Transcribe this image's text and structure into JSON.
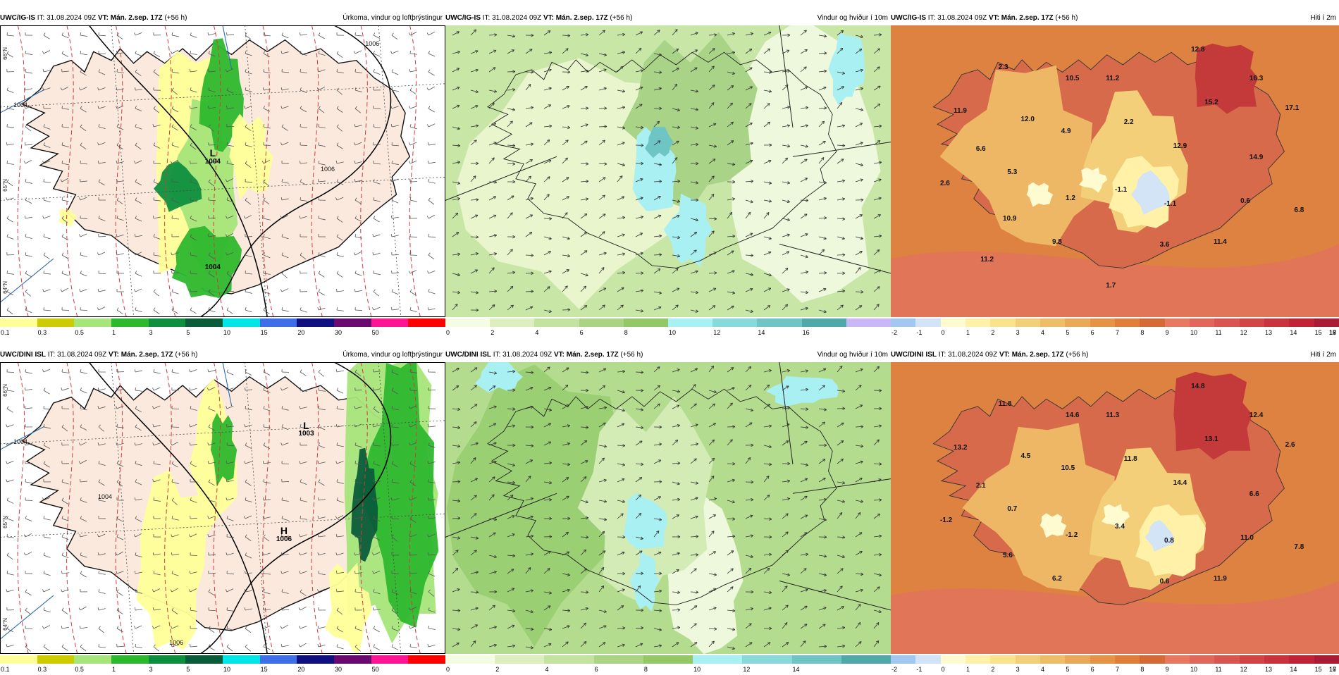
{
  "rows": [
    {
      "model": "UWC/IG-IS",
      "init_prefix": "IT:",
      "init_time": "31.08.2024 09Z",
      "valid_prefix": "VT:",
      "valid_time": "Mán. 2.sep. 17Z",
      "lead": "(+56 h)",
      "panels": [
        {
          "title": "Úrkoma, vindur og loftþrýstingur",
          "type": "precip",
          "colors": [
            "#ffff99",
            "#cccc00",
            "#a6e57a",
            "#2eb82e",
            "#0e8f3f",
            "#0a5c3a",
            "#00e6e6",
            "#3f6fe8",
            "#101080",
            "#6a0a70",
            "#ff1493",
            "#ff0000"
          ],
          "labels": [
            "0.1",
            "0.3",
            "0.5",
            "1",
            "3",
            "5",
            "10",
            "15",
            "20",
            "30",
            "50"
          ],
          "pressure_labels": [
            {
              "l": "L",
              "v": "1004"
            },
            {
              "l": "",
              "v": "1004"
            }
          ],
          "contour_labels": [
            "1006",
            "1004",
            "1006"
          ],
          "lat_labels": [
            "66°N",
            "65°N",
            "64°N"
          ]
        },
        {
          "title": "Vindur og hviður í 10m",
          "type": "wind",
          "colors": [
            "#f4fce4",
            "#ddefbf",
            "#c4e2a0",
            "#aad483",
            "#94c766",
            "#a9f0f2",
            "#88dada",
            "#6fc4c4",
            "#4fa9a9",
            "#c9b8f5"
          ],
          "labels": [
            "0",
            "2",
            "4",
            "6",
            "8",
            "10",
            "12",
            "14",
            "16"
          ]
        },
        {
          "title": "Hiti í 2m",
          "type": "temp",
          "colors": [
            "#a3c8f0",
            "#d2e4f6",
            "#fffbd0",
            "#fff2a8",
            "#f9e38c",
            "#f2d07a",
            "#eebd68",
            "#e9a957",
            "#e59446",
            "#e07f3a",
            "#d66a36",
            "#e8785f",
            "#e0675a",
            "#d95550",
            "#d24446",
            "#c9333d",
            "#bf2335",
            "#aa1b35"
          ],
          "labels": [
            "-2",
            "-1",
            "0",
            "1",
            "2",
            "3",
            "4",
            "5",
            "6",
            "7",
            "8",
            "9",
            "10",
            "11",
            "12",
            "13",
            "14",
            "15",
            "16",
            "17",
            "18"
          ],
          "temps": [
            "12.8",
            "16.3",
            "2.3",
            "10.5",
            "11.2",
            "11.9",
            "12.0",
            "15.2",
            "17.1",
            "2.2",
            "4.9",
            "12.9",
            "6.6",
            "14.9",
            "5.3",
            "2.6",
            "-1.1",
            "1.2",
            "-1.1",
            "0.6",
            "10.9",
            "6.8",
            "9.8",
            "3.6",
            "11.4",
            "11.2",
            "1.7"
          ]
        }
      ]
    },
    {
      "model": "UWC/DINI ISL",
      "init_prefix": "IT:",
      "init_time": "31.08.2024 09Z",
      "valid_prefix": "VT:",
      "valid_time": "Mán. 2.sep. 17Z",
      "lead": "(+56 h)",
      "panels": [
        {
          "title": "Úrkoma, vindur og loftþrýstingur",
          "type": "precip",
          "colors": [
            "#ffff99",
            "#cccc00",
            "#a6e57a",
            "#2eb82e",
            "#0e8f3f",
            "#0a5c3a",
            "#00e6e6",
            "#3f6fe8",
            "#101080",
            "#6a0a70",
            "#ff1493",
            "#ff0000"
          ],
          "labels": [
            "0.1",
            "0.3",
            "0.5",
            "1",
            "3",
            "5",
            "10",
            "15",
            "20",
            "30",
            "50"
          ],
          "pressure_labels": [
            {
              "l": "L",
              "v": "1003"
            },
            {
              "l": "H",
              "v": "1006"
            }
          ],
          "contour_labels": [
            "1004",
            "1004",
            "1006"
          ],
          "lat_labels": [
            "66°N",
            "65°N",
            "64°N"
          ]
        },
        {
          "title": "Vindur og hviður í 10m",
          "type": "wind",
          "colors": [
            "#f4fce4",
            "#ddefbf",
            "#c4e2a0",
            "#aad483",
            "#94c766",
            "#a9f0f2",
            "#88dada",
            "#6fc4c4",
            "#4fa9a9"
          ],
          "labels": [
            "0",
            "2",
            "4",
            "6",
            "8",
            "10",
            "12",
            "14"
          ]
        },
        {
          "title": "Hiti í 2m",
          "type": "temp",
          "colors": [
            "#a3c8f0",
            "#d2e4f6",
            "#fffbd0",
            "#fff2a8",
            "#f9e38c",
            "#f2d07a",
            "#eebd68",
            "#e9a957",
            "#e59446",
            "#e07f3a",
            "#d66a36",
            "#e8785f",
            "#e0675a",
            "#d95550",
            "#d24446",
            "#c9333d",
            "#bf2335",
            "#aa1b35"
          ],
          "labels": [
            "-2",
            "-1",
            "0",
            "1",
            "2",
            "3",
            "4",
            "5",
            "6",
            "7",
            "8",
            "9",
            "10",
            "11",
            "12",
            "13",
            "14",
            "15",
            "16",
            "17"
          ],
          "temps": [
            "14.8",
            "12.4",
            "11.8",
            "14.6",
            "11.3",
            "13.2",
            "4.5",
            "13.1",
            "2.6",
            "11.8",
            "10.5",
            "14.4",
            "2.1",
            "6.6",
            "0.7",
            "-1.2",
            "3.4",
            "-1.2",
            "0.8",
            "11.0",
            "5.6",
            "7.8",
            "6.2",
            "0.6",
            "11.9"
          ]
        }
      ]
    }
  ]
}
